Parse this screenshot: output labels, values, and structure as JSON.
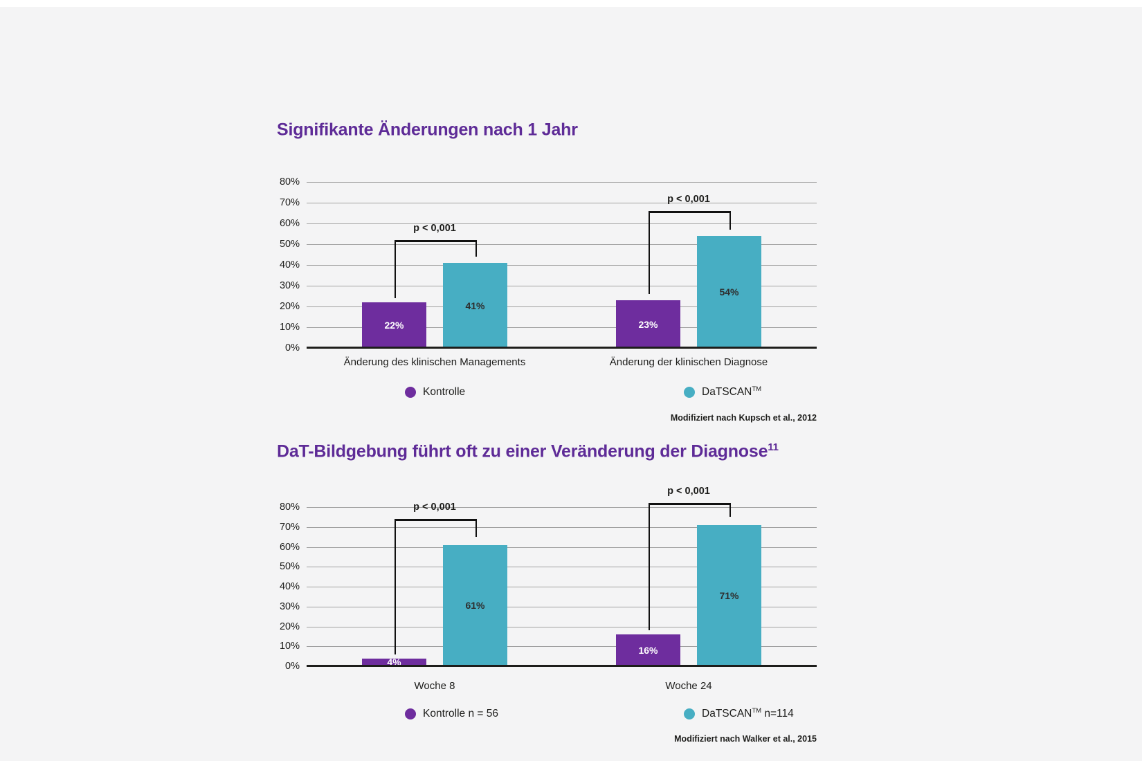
{
  "page": {
    "background": "#f4f4f5",
    "top_strip_color": "#ffffff"
  },
  "colors": {
    "title_purple": "#5e2b97",
    "bar_purple": "#6e2d9e",
    "bar_teal": "#47aec3",
    "gridline_gray": "#a0a0a0",
    "axis_black": "#1d1d1b"
  },
  "chart_data": [
    {
      "type": "bar",
      "title": "Signifikante Änderungen nach 1 Jahr",
      "title_superscript": "",
      "categories": [
        "Änderung des klinischen Managements",
        "Änderung der klinischen Diagnose"
      ],
      "series": [
        {
          "name": "Kontrolle",
          "name_superscript": "",
          "name_suffix": "",
          "color": "#6e2d9e",
          "label_color": "#ffffff",
          "values": [
            22,
            23
          ]
        },
        {
          "name": "DaTSCAN",
          "name_superscript": "TM",
          "name_suffix": "",
          "color": "#47aec3",
          "label_color": "#2e2e2e",
          "values": [
            41,
            54
          ]
        }
      ],
      "ylim": [
        0,
        80
      ],
      "yticks": [
        "80%",
        "70%",
        "60%",
        "50%",
        "40%",
        "30%",
        "20%",
        "10%",
        "0%"
      ],
      "grid": true,
      "legend_position": "bottom",
      "annotations": [
        {
          "label": "p < 0,001",
          "group": 0,
          "bar_top_pct": 52,
          "left_drop_pct": 24,
          "right_drop_pct": 44
        },
        {
          "label": "p < 0,001",
          "group": 1,
          "bar_top_pct": 66,
          "left_drop_pct": 26,
          "right_drop_pct": 57
        }
      ],
      "source": "Modifiziert nach Kupsch et al., 2012"
    },
    {
      "type": "bar",
      "title": "DaT-Bildgebung führt oft zu einer Veränderung der Diagnose",
      "title_superscript": "11",
      "categories": [
        "Woche 8",
        "Woche 24"
      ],
      "series": [
        {
          "name": "Kontrolle n = 56",
          "name_superscript": "",
          "name_suffix": "",
          "color": "#6e2d9e",
          "label_color": "#ffffff",
          "values": [
            4,
            16
          ]
        },
        {
          "name": "DaTSCAN",
          "name_superscript": "TM",
          "name_suffix": " n=114",
          "color": "#47aec3",
          "label_color": "#2e2e2e",
          "values": [
            61,
            71
          ]
        }
      ],
      "ylim": [
        0,
        80
      ],
      "yticks": [
        "80%",
        "70%",
        "60%",
        "50%",
        "40%",
        "30%",
        "20%",
        "10%",
        "0%"
      ],
      "grid": true,
      "legend_position": "bottom",
      "annotations": [
        {
          "label": "p < 0,001",
          "group": 0,
          "bar_top_pct": 74,
          "left_drop_pct": 6,
          "right_drop_pct": 65
        },
        {
          "label": "p < 0,001",
          "group": 1,
          "bar_top_pct": 82,
          "left_drop_pct": 18,
          "right_drop_pct": 75
        }
      ],
      "source": "Modifiziert nach Walker et al., 2015"
    }
  ]
}
